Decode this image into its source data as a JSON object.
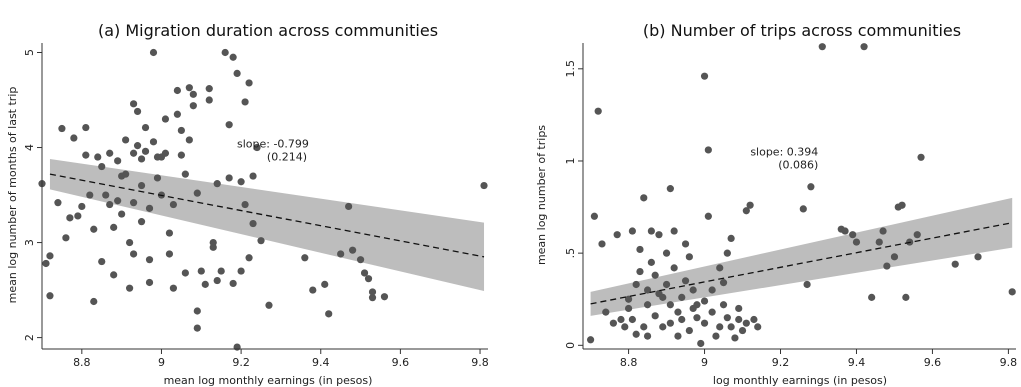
{
  "chart_data": [
    {
      "type": "scatter",
      "title": "(a) Migration duration across communities",
      "xlabel": "mean log monthly earnings (in pesos)",
      "ylabel": "mean log number of months of last trip",
      "xlim": [
        8.7,
        9.82
      ],
      "ylim": [
        1.88,
        5.1
      ],
      "xticks": [
        8.8,
        9,
        9.2,
        9.4,
        9.6,
        9.8
      ],
      "xtick_labels": [
        "8.8",
        "9",
        "9.2",
        "9.4",
        "9.6",
        "9.8"
      ],
      "yticks": [
        2,
        3,
        4,
        5
      ],
      "ytick_labels": [
        "2",
        "3",
        "4",
        "5"
      ],
      "annotation": {
        "line1": "slope: -0.799",
        "line2": "(0.214)",
        "x": 9.28,
        "y": 4.0
      },
      "fit": {
        "x": [
          8.72,
          9.81
        ],
        "y": [
          3.72,
          2.85
        ]
      },
      "ci_band": {
        "x": [
          8.72,
          9.81
        ],
        "upper": [
          3.88,
          3.21
        ],
        "lower": [
          3.56,
          2.49
        ]
      },
      "points": [
        [
          8.7,
          3.62
        ],
        [
          8.71,
          2.78
        ],
        [
          8.72,
          2.86
        ],
        [
          8.72,
          2.44
        ],
        [
          8.75,
          4.2
        ],
        [
          8.74,
          3.42
        ],
        [
          8.76,
          3.05
        ],
        [
          8.77,
          3.26
        ],
        [
          8.78,
          4.1
        ],
        [
          8.79,
          3.28
        ],
        [
          8.8,
          3.38
        ],
        [
          8.81,
          4.21
        ],
        [
          8.81,
          3.92
        ],
        [
          8.82,
          3.5
        ],
        [
          8.83,
          2.38
        ],
        [
          8.83,
          3.14
        ],
        [
          8.84,
          3.9
        ],
        [
          8.85,
          3.8
        ],
        [
          8.85,
          2.8
        ],
        [
          8.86,
          3.5
        ],
        [
          8.87,
          3.94
        ],
        [
          8.87,
          3.4
        ],
        [
          8.88,
          3.16
        ],
        [
          8.88,
          2.66
        ],
        [
          8.89,
          3.86
        ],
        [
          8.89,
          3.44
        ],
        [
          8.9,
          3.7
        ],
        [
          8.9,
          3.3
        ],
        [
          8.91,
          4.08
        ],
        [
          8.91,
          3.72
        ],
        [
          8.92,
          3.0
        ],
        [
          8.92,
          2.52
        ],
        [
          8.93,
          4.46
        ],
        [
          8.93,
          3.94
        ],
        [
          8.93,
          3.42
        ],
        [
          8.93,
          2.88
        ],
        [
          8.94,
          4.38
        ],
        [
          8.94,
          4.02
        ],
        [
          8.95,
          3.88
        ],
        [
          8.95,
          3.6
        ],
        [
          8.95,
          3.22
        ],
        [
          8.96,
          4.21
        ],
        [
          8.96,
          3.96
        ],
        [
          8.97,
          3.36
        ],
        [
          8.97,
          2.82
        ],
        [
          8.97,
          2.58
        ],
        [
          8.98,
          5.0
        ],
        [
          8.98,
          4.06
        ],
        [
          8.99,
          3.9
        ],
        [
          8.99,
          3.68
        ],
        [
          9.0,
          3.9
        ],
        [
          9.0,
          3.5
        ],
        [
          9.01,
          4.3
        ],
        [
          9.01,
          3.94
        ],
        [
          9.02,
          2.88
        ],
        [
          9.02,
          3.1
        ],
        [
          9.03,
          3.4
        ],
        [
          9.03,
          2.52
        ],
        [
          9.04,
          4.35
        ],
        [
          9.04,
          4.6
        ],
        [
          9.05,
          4.18
        ],
        [
          9.05,
          3.92
        ],
        [
          9.06,
          3.72
        ],
        [
          9.06,
          2.68
        ],
        [
          9.07,
          4.63
        ],
        [
          9.07,
          4.08
        ],
        [
          9.08,
          4.56
        ],
        [
          9.08,
          4.44
        ],
        [
          9.09,
          3.52
        ],
        [
          9.09,
          2.1
        ],
        [
          9.09,
          2.28
        ],
        [
          9.1,
          2.7
        ],
        [
          9.11,
          2.56
        ],
        [
          9.12,
          4.5
        ],
        [
          9.12,
          4.62
        ],
        [
          9.13,
          2.95
        ],
        [
          9.13,
          3.0
        ],
        [
          9.14,
          3.62
        ],
        [
          9.14,
          2.6
        ],
        [
          9.15,
          2.7
        ],
        [
          9.16,
          5.0
        ],
        [
          9.17,
          4.24
        ],
        [
          9.17,
          3.68
        ],
        [
          9.18,
          4.95
        ],
        [
          9.18,
          2.57
        ],
        [
          9.19,
          4.78
        ],
        [
          9.19,
          1.9
        ],
        [
          9.2,
          2.7
        ],
        [
          9.2,
          3.64
        ],
        [
          9.21,
          4.48
        ],
        [
          9.21,
          3.4
        ],
        [
          9.22,
          4.68
        ],
        [
          9.22,
          2.84
        ],
        [
          9.23,
          3.2
        ],
        [
          9.23,
          3.7
        ],
        [
          9.24,
          4.0
        ],
        [
          9.25,
          3.02
        ],
        [
          9.27,
          2.34
        ],
        [
          9.36,
          2.84
        ],
        [
          9.38,
          2.5
        ],
        [
          9.41,
          2.56
        ],
        [
          9.42,
          2.25
        ],
        [
          9.45,
          2.88
        ],
        [
          9.47,
          3.38
        ],
        [
          9.48,
          2.92
        ],
        [
          9.5,
          2.82
        ],
        [
          9.51,
          2.68
        ],
        [
          9.52,
          2.62
        ],
        [
          9.53,
          2.48
        ],
        [
          9.53,
          2.42
        ],
        [
          9.56,
          2.43
        ],
        [
          9.81,
          3.6
        ]
      ]
    },
    {
      "type": "scatter",
      "title": "(b) Number of trips across communities",
      "xlabel": "log monthly earnings (in pesos)",
      "ylabel": "mean log number of trips",
      "xlim": [
        8.68,
        9.82
      ],
      "ylim": [
        -0.02,
        1.64
      ],
      "xticks": [
        8.8,
        9,
        9.2,
        9.4,
        9.6,
        9.8
      ],
      "xtick_labels": [
        "8.8",
        "9",
        "9.2",
        "9.4",
        "9.6",
        "9.8"
      ],
      "yticks": [
        0,
        0.5,
        1,
        1.5
      ],
      "ytick_labels": [
        "0",
        ".5",
        "1",
        "1.5"
      ],
      "annotation": {
        "line1": "slope: 0.394",
        "line2": "(0.086)",
        "x": 9.21,
        "y": 1.03
      },
      "fit": {
        "x": [
          8.7,
          9.81
        ],
        "y": [
          0.225,
          0.665
        ]
      },
      "ci_band": {
        "x": [
          8.7,
          9.81
        ],
        "upper": [
          0.29,
          0.8
        ],
        "lower": [
          0.16,
          0.53
        ]
      },
      "points": [
        [
          8.7,
          0.03
        ],
        [
          8.71,
          0.7
        ],
        [
          8.72,
          1.27
        ],
        [
          8.73,
          0.55
        ],
        [
          8.74,
          0.18
        ],
        [
          8.76,
          0.12
        ],
        [
          8.77,
          0.6
        ],
        [
          8.78,
          0.14
        ],
        [
          8.79,
          0.1
        ],
        [
          8.8,
          0.2
        ],
        [
          8.8,
          0.25
        ],
        [
          8.81,
          0.62
        ],
        [
          8.81,
          0.14
        ],
        [
          8.82,
          0.06
        ],
        [
          8.82,
          0.33
        ],
        [
          8.83,
          0.4
        ],
        [
          8.83,
          0.52
        ],
        [
          8.84,
          0.8
        ],
        [
          8.84,
          0.1
        ],
        [
          8.85,
          0.3
        ],
        [
          8.85,
          0.22
        ],
        [
          8.85,
          0.05
        ],
        [
          8.86,
          0.62
        ],
        [
          8.86,
          0.45
        ],
        [
          8.87,
          0.16
        ],
        [
          8.87,
          0.38
        ],
        [
          8.88,
          0.6
        ],
        [
          8.88,
          0.28
        ],
        [
          8.89,
          0.26
        ],
        [
          8.89,
          0.1
        ],
        [
          8.9,
          0.5
        ],
        [
          8.9,
          0.33
        ],
        [
          8.91,
          0.85
        ],
        [
          8.91,
          0.22
        ],
        [
          8.91,
          0.12
        ],
        [
          8.92,
          0.62
        ],
        [
          8.92,
          0.42
        ],
        [
          8.93,
          0.18
        ],
        [
          8.93,
          0.05
        ],
        [
          8.94,
          0.26
        ],
        [
          8.94,
          0.14
        ],
        [
          8.95,
          0.55
        ],
        [
          8.95,
          0.35
        ],
        [
          8.96,
          0.08
        ],
        [
          8.96,
          0.48
        ],
        [
          8.97,
          0.2
        ],
        [
          8.97,
          0.3
        ],
        [
          8.98,
          0.15
        ],
        [
          8.98,
          0.22
        ],
        [
          8.99,
          0.01
        ],
        [
          9.0,
          1.46
        ],
        [
          9.0,
          0.24
        ],
        [
          9.0,
          0.12
        ],
        [
          9.01,
          1.06
        ],
        [
          9.01,
          0.7
        ],
        [
          9.02,
          0.3
        ],
        [
          9.02,
          0.18
        ],
        [
          9.03,
          0.05
        ],
        [
          9.04,
          0.42
        ],
        [
          9.04,
          0.1
        ],
        [
          9.05,
          0.22
        ],
        [
          9.05,
          0.34
        ],
        [
          9.06,
          0.15
        ],
        [
          9.06,
          0.5
        ],
        [
          9.07,
          0.58
        ],
        [
          9.07,
          0.1
        ],
        [
          9.08,
          0.04
        ],
        [
          9.09,
          0.2
        ],
        [
          9.09,
          0.14
        ],
        [
          9.1,
          0.08
        ],
        [
          9.11,
          0.12
        ],
        [
          9.11,
          0.73
        ],
        [
          9.12,
          0.76
        ],
        [
          9.13,
          0.14
        ],
        [
          9.14,
          0.1
        ],
        [
          9.26,
          0.74
        ],
        [
          9.28,
          0.86
        ],
        [
          9.27,
          0.33
        ],
        [
          9.31,
          1.62
        ],
        [
          9.36,
          0.63
        ],
        [
          9.37,
          0.62
        ],
        [
          9.39,
          0.6
        ],
        [
          9.4,
          0.56
        ],
        [
          9.42,
          1.62
        ],
        [
          9.44,
          0.26
        ],
        [
          9.46,
          0.56
        ],
        [
          9.47,
          0.62
        ],
        [
          9.48,
          0.43
        ],
        [
          9.5,
          0.48
        ],
        [
          9.51,
          0.75
        ],
        [
          9.52,
          0.76
        ],
        [
          9.53,
          0.26
        ],
        [
          9.54,
          0.56
        ],
        [
          9.56,
          0.6
        ],
        [
          9.57,
          1.02
        ],
        [
          9.66,
          0.44
        ],
        [
          9.72,
          0.48
        ],
        [
          9.81,
          0.29
        ]
      ]
    }
  ]
}
